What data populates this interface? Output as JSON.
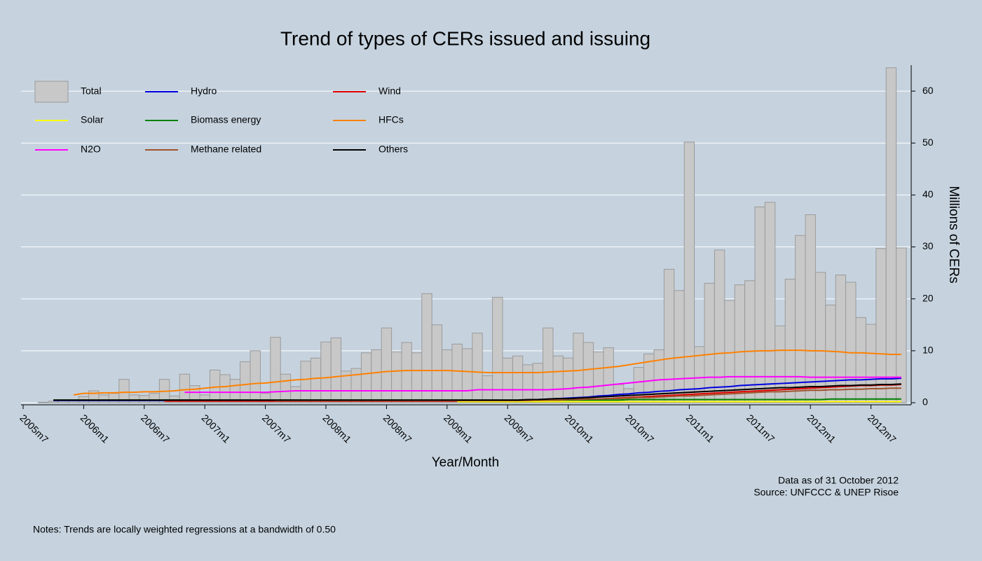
{
  "chart_data": {
    "type": "bar",
    "title": "Trend of types of CERs issued and issuing",
    "x_label": "Year/Month",
    "y_label": "Millions of CERs",
    "notes": [
      "Data as of 31 October 2012",
      "Source: UNFCCC & UNEP Risoe"
    ],
    "footnote": "Notes: Trends are locally weighted regressions at a bandwidth of 0.50",
    "ylim": [
      0,
      65
    ],
    "yticks": [
      0,
      10,
      20,
      30,
      40,
      50,
      60
    ],
    "grid": true,
    "legend": "top-left",
    "categories": [
      "2005m7",
      null,
      null,
      null,
      null,
      null,
      "2006m1",
      null,
      null,
      null,
      null,
      null,
      "2006m7",
      null,
      null,
      null,
      null,
      null,
      "2007m1",
      null,
      null,
      null,
      null,
      null,
      "2007m7",
      null,
      null,
      null,
      null,
      null,
      "2008m1",
      null,
      null,
      null,
      null,
      null,
      "2008m7",
      null,
      null,
      null,
      null,
      null,
      "2009m1",
      null,
      null,
      null,
      null,
      null,
      "2009m7",
      null,
      null,
      null,
      null,
      null,
      "2010m1",
      null,
      null,
      null,
      null,
      null,
      "2010m7",
      null,
      null,
      null,
      null,
      null,
      "2011m1",
      null,
      null,
      null,
      null,
      null,
      "2011m7",
      null,
      null,
      null,
      null,
      null,
      "2012m1",
      null,
      null,
      null,
      null,
      null,
      "2012m7",
      null,
      null,
      null
    ],
    "series": [
      {
        "name": "Total",
        "type": "bar",
        "color": "#c8c8c8",
        "values": [
          0,
          0,
          0.1,
          0.3,
          0.4,
          0.5,
          1.2,
          2.3,
          1.5,
          1.8,
          4.5,
          1.5,
          1.4,
          1.8,
          4.5,
          1.3,
          5.5,
          3.3,
          1.5,
          6.3,
          5.4,
          4.5,
          7.9,
          10,
          1.8,
          12.6,
          5.5,
          3.1,
          8,
          8.6,
          11.7,
          12.5,
          6.1,
          6.6,
          9.6,
          10.2,
          14.4,
          9.8,
          11.6,
          9.6,
          21,
          15,
          10.2,
          11.3,
          10.4,
          13.4,
          5.2,
          20.3,
          8.6,
          9,
          7.3,
          7.6,
          14.4,
          9,
          8.6,
          13.4,
          11.6,
          9.8,
          10.6,
          3.5,
          2.7,
          6.8,
          9.4,
          10.2,
          25.7,
          21.6,
          50.2,
          10.8,
          23,
          29.4,
          19.7,
          22.7,
          23.5,
          37.7,
          38.6,
          14.8,
          23.8,
          32.2,
          36.2,
          25.1,
          18.8,
          24.6,
          23.2,
          16.4,
          15.1,
          29.7,
          64.5,
          29.8
        ]
      },
      {
        "name": "Hydro",
        "type": "line",
        "color": "#0000e0",
        "values": [
          null,
          null,
          null,
          0.4,
          0.4,
          0.4,
          0.4,
          0.4,
          0.4,
          0.4,
          0.4,
          0.4,
          0.4,
          0.4,
          0.4,
          0.4,
          0.4,
          0.4,
          0.4,
          0.4,
          0.4,
          0.4,
          0.4,
          0.4,
          0.4,
          0.4,
          0.4,
          0.4,
          0.4,
          0.4,
          0.4,
          0.4,
          0.4,
          0.4,
          0.4,
          0.4,
          0.4,
          0.4,
          0.4,
          0.4,
          0.4,
          0.4,
          0.4,
          0.4,
          0.4,
          0.4,
          0.4,
          0.4,
          0.4,
          0.4,
          0.5,
          0.6,
          0.7,
          0.8,
          0.9,
          1.0,
          1.1,
          1.3,
          1.4,
          1.6,
          1.7,
          1.9,
          2.0,
          2.2,
          2.3,
          2.5,
          2.6,
          2.7,
          2.9,
          3.0,
          3.1,
          3.3,
          3.4,
          3.5,
          3.6,
          3.7,
          3.8,
          3.9,
          4.0,
          4.1,
          4.2,
          4.3,
          4.4,
          4.4,
          4.5,
          4.6,
          4.6,
          4.7
        ]
      },
      {
        "name": "Wind",
        "type": "line",
        "color": "#e00000",
        "values": [
          null,
          null,
          null,
          null,
          null,
          null,
          null,
          null,
          null,
          null,
          null,
          null,
          null,
          null,
          0.3,
          0.3,
          0.3,
          0.3,
          0.3,
          0.3,
          0.3,
          0.3,
          0.3,
          0.3,
          0.3,
          0.3,
          0.3,
          0.3,
          0.3,
          0.3,
          0.3,
          0.3,
          0.3,
          0.3,
          0.3,
          0.3,
          0.3,
          0.3,
          0.3,
          0.3,
          0.3,
          0.3,
          0.3,
          0.3,
          0.3,
          0.3,
          0.3,
          0.3,
          0.3,
          0.3,
          0.4,
          0.4,
          0.5,
          0.5,
          0.6,
          0.6,
          0.7,
          0.7,
          0.8,
          0.9,
          1.0,
          1.1,
          1.2,
          1.3,
          1.4,
          1.5,
          1.6,
          1.7,
          1.8,
          1.9,
          2.0,
          2.1,
          2.2,
          2.3,
          2.4,
          2.5,
          2.6,
          2.7,
          2.8,
          2.9,
          3.0,
          3.1,
          3.2,
          3.3,
          3.3,
          3.4,
          3.4,
          3.5
        ]
      },
      {
        "name": "Solar",
        "type": "line",
        "color": "#ffff00",
        "values": [
          null,
          null,
          null,
          null,
          null,
          null,
          null,
          null,
          null,
          null,
          null,
          null,
          null,
          null,
          null,
          null,
          null,
          null,
          null,
          null,
          null,
          null,
          null,
          null,
          null,
          null,
          null,
          null,
          null,
          null,
          null,
          null,
          null,
          null,
          null,
          null,
          null,
          null,
          null,
          null,
          null,
          null,
          null,
          0.2,
          0.2,
          0.2,
          0.2,
          0.2,
          0.2,
          0.2,
          0.2,
          0.2,
          0.2,
          0.2,
          0.2,
          0.2,
          0.2,
          0.2,
          0.2,
          0.2,
          0.2,
          0.2,
          0.2,
          0.2,
          0.2,
          0.2,
          0.2,
          0.2,
          0.2,
          0.2,
          0.2,
          0.2,
          0.2,
          0.2,
          0.2,
          0.2,
          0.2,
          0.2,
          0.2,
          0.2,
          0.2,
          0.2,
          0.2,
          0.2,
          0.2,
          0.2,
          0.2,
          0.2
        ]
      },
      {
        "name": "Biomass energy",
        "type": "line",
        "color": "#008000",
        "values": [
          null,
          null,
          null,
          0.5,
          0.5,
          0.5,
          0.5,
          0.5,
          0.5,
          0.5,
          0.5,
          0.5,
          0.5,
          0.5,
          0.5,
          0.5,
          0.5,
          0.5,
          0.5,
          0.5,
          0.5,
          0.5,
          0.5,
          0.5,
          0.5,
          0.5,
          0.5,
          0.5,
          0.5,
          0.5,
          0.5,
          0.5,
          0.5,
          0.5,
          0.5,
          0.5,
          0.5,
          0.5,
          0.5,
          0.5,
          0.5,
          0.5,
          0.5,
          0.5,
          0.5,
          0.5,
          0.5,
          0.5,
          0.5,
          0.5,
          0.5,
          0.5,
          0.5,
          0.5,
          0.5,
          0.5,
          0.5,
          0.5,
          0.5,
          0.5,
          0.6,
          0.6,
          0.6,
          0.6,
          0.6,
          0.6,
          0.6,
          0.6,
          0.6,
          0.6,
          0.6,
          0.6,
          0.6,
          0.6,
          0.6,
          0.6,
          0.6,
          0.6,
          0.6,
          0.6,
          0.7,
          0.7,
          0.7,
          0.7,
          0.7,
          0.7,
          0.7,
          0.7
        ]
      },
      {
        "name": "HFCs",
        "type": "line",
        "color": "#ff8000",
        "values": [
          null,
          null,
          null,
          null,
          null,
          1.5,
          1.8,
          1.8,
          1.9,
          1.9,
          2.0,
          2.0,
          2.1,
          2.1,
          2.2,
          2.3,
          2.5,
          2.6,
          2.8,
          3.0,
          3.1,
          3.3,
          3.5,
          3.7,
          3.8,
          4.0,
          4.2,
          4.4,
          4.5,
          4.7,
          4.8,
          5.0,
          5.2,
          5.4,
          5.6,
          5.8,
          6.0,
          6.1,
          6.2,
          6.2,
          6.2,
          6.2,
          6.2,
          6.1,
          6.0,
          5.9,
          5.8,
          5.8,
          5.8,
          5.8,
          5.8,
          5.8,
          5.9,
          6.0,
          6.1,
          6.2,
          6.4,
          6.6,
          6.8,
          7.0,
          7.3,
          7.6,
          7.9,
          8.2,
          8.5,
          8.7,
          8.9,
          9.1,
          9.3,
          9.5,
          9.6,
          9.8,
          9.9,
          10.0,
          10.0,
          10.1,
          10.1,
          10.1,
          10.0,
          10.0,
          9.9,
          9.8,
          9.6,
          9.6,
          9.5,
          9.4,
          9.3,
          9.3
        ]
      },
      {
        "name": "N2O",
        "type": "line",
        "color": "#ff00ff",
        "values": [
          null,
          null,
          null,
          null,
          null,
          null,
          null,
          null,
          null,
          null,
          null,
          null,
          null,
          null,
          null,
          null,
          2.0,
          2.0,
          2.0,
          2.0,
          2.0,
          2.0,
          2.0,
          2.0,
          2.0,
          2.1,
          2.2,
          2.3,
          2.3,
          2.3,
          2.3,
          2.3,
          2.3,
          2.3,
          2.3,
          2.3,
          2.3,
          2.3,
          2.3,
          2.3,
          2.3,
          2.3,
          2.3,
          2.3,
          2.3,
          2.5,
          2.5,
          2.5,
          2.5,
          2.5,
          2.5,
          2.5,
          2.5,
          2.6,
          2.7,
          2.9,
          3.0,
          3.2,
          3.4,
          3.6,
          3.8,
          4.0,
          4.2,
          4.4,
          4.5,
          4.6,
          4.7,
          4.8,
          4.9,
          4.9,
          5.0,
          5.0,
          5.0,
          5.0,
          5.0,
          5.0,
          5.0,
          5.0,
          4.9,
          4.9,
          4.9,
          4.9,
          4.9,
          4.9,
          4.9,
          4.9,
          4.9,
          4.9
        ]
      },
      {
        "name": "Methane related",
        "type": "line",
        "color": "#a0522d",
        "values": [
          null,
          null,
          null,
          null,
          null,
          null,
          null,
          null,
          null,
          null,
          null,
          null,
          null,
          null,
          null,
          null,
          null,
          null,
          null,
          null,
          null,
          null,
          null,
          null,
          null,
          0.4,
          0.4,
          0.4,
          0.4,
          0.4,
          0.4,
          0.4,
          0.4,
          0.4,
          0.4,
          0.4,
          0.4,
          0.4,
          0.4,
          0.4,
          0.4,
          0.4,
          0.4,
          0.4,
          0.4,
          0.4,
          0.4,
          0.4,
          0.4,
          0.4,
          0.4,
          0.5,
          0.5,
          0.5,
          0.6,
          0.6,
          0.7,
          0.7,
          0.8,
          0.8,
          0.9,
          1.0,
          1.0,
          1.1,
          1.2,
          1.3,
          1.3,
          1.4,
          1.5,
          1.6,
          1.7,
          1.8,
          1.9,
          2.0,
          2.1,
          2.1,
          2.2,
          2.3,
          2.4,
          2.4,
          2.5,
          2.5,
          2.6,
          2.6,
          2.7,
          2.7,
          2.8,
          2.8
        ]
      },
      {
        "name": "Others",
        "type": "line",
        "color": "#000000",
        "values": [
          null,
          null,
          null,
          0.5,
          0.5,
          0.5,
          0.5,
          0.5,
          0.5,
          0.5,
          0.5,
          0.5,
          0.5,
          0.5,
          0.5,
          0.5,
          0.5,
          0.5,
          0.5,
          0.5,
          0.5,
          0.5,
          0.5,
          0.5,
          0.5,
          0.5,
          0.5,
          0.5,
          0.5,
          0.5,
          0.5,
          0.5,
          0.5,
          0.5,
          0.5,
          0.5,
          0.5,
          0.5,
          0.5,
          0.5,
          0.5,
          0.5,
          0.5,
          0.5,
          0.5,
          0.5,
          0.5,
          0.5,
          0.5,
          0.5,
          0.6,
          0.6,
          0.7,
          0.8,
          0.8,
          0.9,
          1.0,
          1.1,
          1.2,
          1.3,
          1.4,
          1.5,
          1.6,
          1.7,
          1.8,
          1.9,
          2.0,
          2.1,
          2.2,
          2.3,
          2.4,
          2.5,
          2.6,
          2.7,
          2.8,
          2.9,
          2.9,
          3.0,
          3.1,
          3.1,
          3.2,
          3.3,
          3.3,
          3.4,
          3.4,
          3.5,
          3.5,
          3.6
        ]
      }
    ]
  }
}
